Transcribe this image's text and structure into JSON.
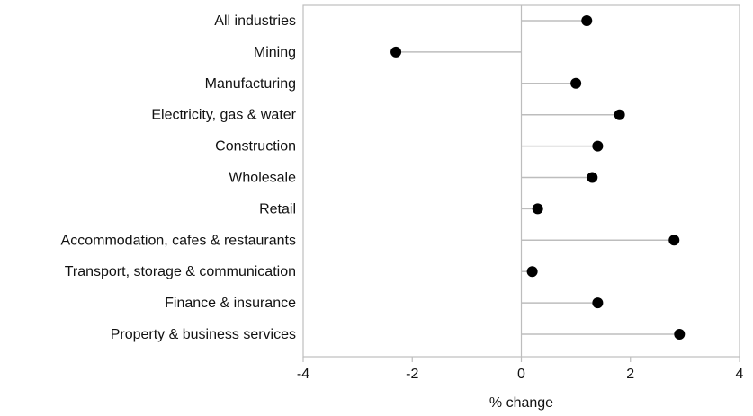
{
  "chart_data": {
    "type": "scatter",
    "orientation": "horizontal-lollipop",
    "categories": [
      "All industries",
      "Mining",
      "Manufacturing",
      "Electricity, gas & water",
      "Construction",
      "Wholesale",
      "Retail",
      "Accommodation, cafes & restaurants",
      "Transport, storage & communication",
      "Finance & insurance",
      "Property & business services"
    ],
    "values": [
      1.2,
      -2.3,
      1.0,
      1.8,
      1.4,
      1.3,
      0.3,
      2.8,
      0.2,
      1.4,
      2.9
    ],
    "xlabel": "% change",
    "ylabel": "",
    "title": "",
    "xlim": [
      -4,
      4
    ],
    "xticks": [
      "-4",
      "-2",
      "0",
      "2",
      "4"
    ],
    "grid": false,
    "colors": {
      "marker": "#000000",
      "stem": "#bdbdbd",
      "frame": "#bdbdbd"
    }
  }
}
